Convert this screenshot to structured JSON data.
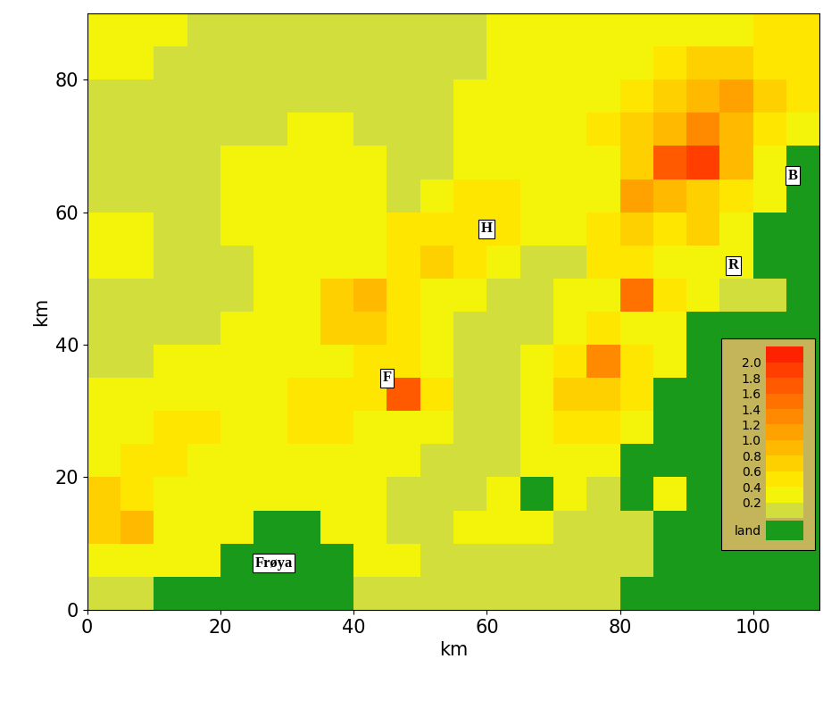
{
  "chart_data": {
    "type": "heatmap",
    "xlabel": "km",
    "ylabel": "km",
    "xlim": [
      0,
      110
    ],
    "ylim": [
      0,
      90
    ],
    "xticks": [
      0,
      20,
      40,
      60,
      80,
      100
    ],
    "yticks": [
      0,
      20,
      40,
      60,
      80
    ],
    "x_edges": [
      0,
      5,
      10,
      15,
      20,
      25,
      30,
      35,
      40,
      45,
      50,
      55,
      60,
      65,
      70,
      75,
      80,
      85,
      90,
      95,
      100,
      105,
      110
    ],
    "y_edges": [
      0,
      5,
      10,
      15,
      20,
      25,
      30,
      35,
      40,
      45,
      50,
      55,
      60,
      65,
      70,
      75,
      80,
      85,
      90
    ],
    "cells": [
      [
        0.1,
        0.1,
        null,
        null,
        null,
        null,
        null,
        null,
        0.1,
        0.1,
        0.1,
        0.1,
        0.1,
        0.1,
        0.1,
        0.1,
        null,
        null,
        null,
        null,
        null,
        null
      ],
      [
        0.3,
        0.3,
        0.3,
        0.3,
        null,
        null,
        null,
        null,
        0.3,
        0.3,
        0.1,
        0.1,
        0.1,
        0.1,
        0.1,
        0.1,
        0.1,
        null,
        null,
        null,
        null,
        null
      ],
      [
        0.7,
        0.9,
        0.3,
        0.3,
        0.3,
        null,
        null,
        0.3,
        0.3,
        0.1,
        0.1,
        0.3,
        0.3,
        0.3,
        0.1,
        0.1,
        0.1,
        null,
        null,
        null,
        null,
        null
      ],
      [
        0.7,
        0.5,
        0.3,
        0.3,
        0.3,
        0.3,
        0.3,
        0.3,
        0.3,
        0.1,
        0.1,
        0.1,
        0.3,
        null,
        0.3,
        0.1,
        null,
        0.3,
        null,
        null,
        null,
        null
      ],
      [
        0.3,
        0.5,
        0.5,
        0.3,
        0.3,
        0.3,
        0.3,
        0.3,
        0.3,
        0.3,
        0.1,
        0.1,
        0.1,
        0.3,
        0.3,
        0.3,
        null,
        null,
        null,
        null,
        null,
        null
      ],
      [
        0.3,
        0.3,
        0.5,
        0.5,
        0.3,
        0.3,
        0.5,
        0.5,
        0.3,
        0.3,
        0.3,
        0.1,
        0.1,
        0.3,
        0.5,
        0.5,
        0.3,
        null,
        null,
        null,
        null,
        null
      ],
      [
        0.3,
        0.3,
        0.3,
        0.3,
        0.3,
        0.3,
        0.5,
        0.5,
        0.5,
        1.7,
        0.5,
        0.1,
        0.1,
        0.3,
        0.7,
        0.7,
        0.5,
        null,
        null,
        null,
        null,
        null
      ],
      [
        0.1,
        0.1,
        0.3,
        0.3,
        0.3,
        0.3,
        0.3,
        0.3,
        0.5,
        0.5,
        0.3,
        0.1,
        0.1,
        0.3,
        0.5,
        1.3,
        0.5,
        0.3,
        null,
        null,
        null,
        null
      ],
      [
        0.1,
        0.1,
        0.1,
        0.1,
        0.3,
        0.3,
        0.3,
        0.7,
        0.7,
        0.5,
        0.3,
        0.1,
        0.1,
        0.1,
        0.3,
        0.5,
        0.3,
        0.3,
        null,
        null,
        null,
        null
      ],
      [
        0.1,
        0.1,
        0.1,
        0.1,
        0.1,
        0.3,
        0.3,
        0.7,
        0.9,
        0.5,
        0.3,
        0.3,
        0.1,
        0.1,
        0.3,
        0.3,
        1.5,
        0.5,
        0.3,
        0.1,
        0.1,
        null
      ],
      [
        0.3,
        0.3,
        0.1,
        0.1,
        0.1,
        0.3,
        0.3,
        0.3,
        0.3,
        0.5,
        0.7,
        0.5,
        0.3,
        0.1,
        0.1,
        0.5,
        0.5,
        0.3,
        0.3,
        0.3,
        null,
        null
      ],
      [
        0.3,
        0.3,
        0.1,
        0.1,
        0.3,
        0.3,
        0.3,
        0.3,
        0.3,
        0.5,
        0.5,
        0.5,
        0.5,
        0.3,
        0.3,
        0.5,
        0.7,
        0.5,
        0.7,
        0.3,
        null,
        null
      ],
      [
        0.1,
        0.1,
        0.1,
        0.1,
        0.3,
        0.3,
        0.3,
        0.3,
        0.3,
        0.1,
        0.3,
        0.5,
        0.5,
        0.3,
        0.3,
        0.3,
        1.1,
        0.9,
        0.7,
        0.5,
        0.3,
        null
      ],
      [
        0.1,
        0.1,
        0.1,
        0.1,
        0.3,
        0.3,
        0.3,
        0.3,
        0.3,
        0.1,
        0.1,
        0.3,
        0.3,
        0.3,
        0.3,
        0.3,
        0.7,
        1.7,
        1.9,
        0.9,
        0.3,
        null
      ],
      [
        0.1,
        0.1,
        0.1,
        0.1,
        0.1,
        0.1,
        0.3,
        0.3,
        0.1,
        0.1,
        0.1,
        0.3,
        0.3,
        0.3,
        0.3,
        0.5,
        0.7,
        0.9,
        1.3,
        0.9,
        0.5,
        0.3
      ],
      [
        0.1,
        0.1,
        0.1,
        0.1,
        0.1,
        0.1,
        0.1,
        0.1,
        0.1,
        0.1,
        0.1,
        0.3,
        0.3,
        0.3,
        0.3,
        0.3,
        0.5,
        0.7,
        0.9,
        1.1,
        0.7,
        0.5
      ],
      [
        0.3,
        0.3,
        0.1,
        0.1,
        0.1,
        0.1,
        0.1,
        0.1,
        0.1,
        0.1,
        0.1,
        0.1,
        0.3,
        0.3,
        0.3,
        0.3,
        0.3,
        0.5,
        0.7,
        0.7,
        0.5,
        0.5
      ],
      [
        0.3,
        0.3,
        0.3,
        0.1,
        0.1,
        0.1,
        0.1,
        0.1,
        0.1,
        0.1,
        0.1,
        0.1,
        0.3,
        0.3,
        0.3,
        0.3,
        0.3,
        0.3,
        0.3,
        0.3,
        0.5,
        0.5
      ]
    ],
    "levels": [
      0.0,
      0.2,
      0.4,
      0.6,
      0.8,
      1.0,
      1.2,
      1.4,
      1.6,
      1.8,
      2.0,
      2.2
    ],
    "colors": [
      "#d2de3c",
      "#f4f40a",
      "#ffe600",
      "#ffd000",
      "#ffba00",
      "#ffa200",
      "#ff8a00",
      "#ff7200",
      "#ff5a00",
      "#ff3e00",
      "#ff2200"
    ],
    "colorbar_ticks": [
      0.2,
      0.4,
      0.6,
      0.8,
      1.0,
      1.2,
      1.4,
      1.6,
      1.8,
      2.0
    ],
    "land": {
      "label": "land",
      "color": "#1a9a1a"
    },
    "annotations": [
      {
        "text": "Frøya",
        "x": 28,
        "y": 7
      },
      {
        "text": "F",
        "x": 45,
        "y": 35
      },
      {
        "text": "H",
        "x": 60,
        "y": 57.5
      },
      {
        "text": "R",
        "x": 97,
        "y": 52
      },
      {
        "text": "B",
        "x": 106,
        "y": 65.5
      }
    ]
  }
}
